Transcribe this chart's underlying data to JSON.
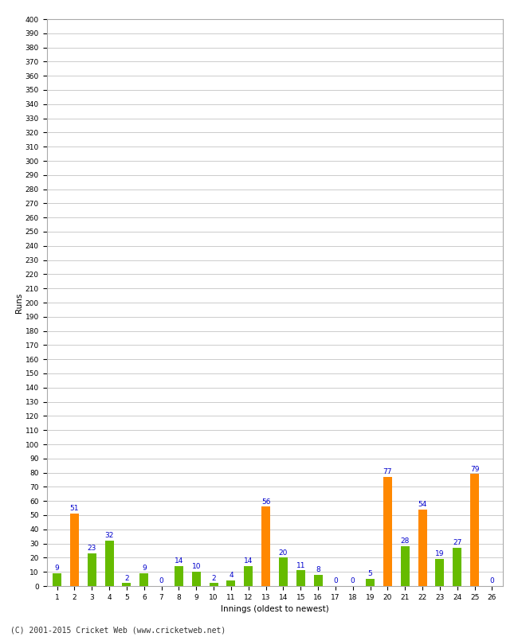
{
  "xlabel": "Innings (oldest to newest)",
  "ylabel": "Runs",
  "innings": [
    1,
    2,
    3,
    4,
    5,
    6,
    7,
    8,
    9,
    10,
    11,
    12,
    13,
    14,
    15,
    16,
    17,
    18,
    19,
    20,
    21,
    22,
    23,
    24,
    25,
    26
  ],
  "values": [
    9,
    51,
    23,
    32,
    2,
    9,
    0,
    14,
    10,
    2,
    4,
    14,
    56,
    20,
    11,
    8,
    0,
    0,
    5,
    77,
    28,
    54,
    19,
    27,
    79,
    0
  ],
  "colors": [
    "#66bb00",
    "#ff8800",
    "#66bb00",
    "#66bb00",
    "#66bb00",
    "#66bb00",
    "#66bb00",
    "#66bb00",
    "#66bb00",
    "#66bb00",
    "#66bb00",
    "#66bb00",
    "#ff8800",
    "#66bb00",
    "#66bb00",
    "#66bb00",
    "#66bb00",
    "#66bb00",
    "#66bb00",
    "#ff8800",
    "#66bb00",
    "#ff8800",
    "#66bb00",
    "#66bb00",
    "#ff8800",
    "#66bb00"
  ],
  "label_color": "#0000cc",
  "ylim": [
    0,
    400
  ],
  "ytick_step": 10,
  "background_color": "#ffffff",
  "grid_color": "#cccccc",
  "footer": "(C) 2001-2015 Cricket Web (www.cricketweb.net)"
}
